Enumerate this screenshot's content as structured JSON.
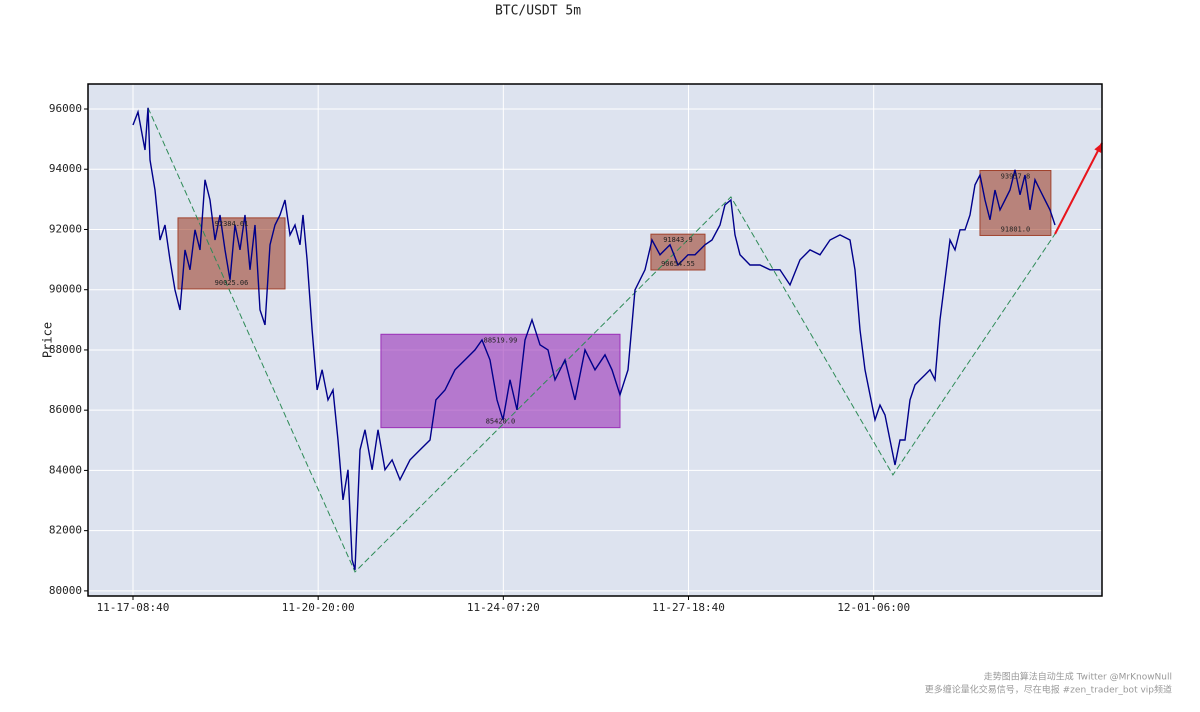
{
  "chart_data": {
    "type": "line",
    "title": "BTC/USDT 5m",
    "y_label": "Price",
    "x": [
      0,
      27,
      65,
      81,
      92,
      119,
      146,
      173,
      200,
      227,
      254,
      281,
      308,
      335,
      362,
      389,
      416,
      443,
      470,
      497,
      524,
      551,
      578,
      605,
      632,
      659,
      686,
      713,
      740,
      767,
      794,
      821,
      848,
      875,
      902,
      918,
      940,
      967,
      994,
      1021,
      1053,
      1080,
      1107,
      1134,
      1161,
      1183,
      1199,
      1226,
      1253,
      1291,
      1323,
      1361,
      1399,
      1442,
      1496,
      1550,
      1604,
      1636,
      1685,
      1739,
      1793,
      1847,
      1885,
      1928,
      1966,
      1998,
      2036,
      2074,
      2117,
      2155,
      2198,
      2241,
      2279,
      2333,
      2387,
      2441,
      2495,
      2549,
      2587,
      2630,
      2673,
      2711,
      2765,
      2803,
      2846,
      2900,
      2943,
      2997,
      3035,
      3089,
      3127,
      3170,
      3197,
      3229,
      3251,
      3278,
      3332,
      3386,
      3440,
      3494,
      3548,
      3602,
      3656,
      3710,
      3764,
      3818,
      3872,
      3899,
      3926,
      3953,
      3980,
      4007,
      4034,
      4061,
      4088,
      4115,
      4142,
      4169,
      4196,
      4223,
      4250,
      4277,
      4304,
      4331,
      4358,
      4385,
      4412,
      4439,
      4466,
      4493,
      4520,
      4547,
      4574,
      4601,
      4628,
      4655,
      4682,
      4709,
      4736,
      4763,
      4790,
      4817,
      4844,
      4871,
      4898,
      4925,
      4952,
      4979
    ],
    "values": [
      95470,
      95900,
      94640,
      96040,
      94310,
      93310,
      91650,
      92150,
      90990,
      89990,
      89330,
      91320,
      90660,
      91990,
      91320,
      93650,
      92980,
      91650,
      92480,
      91320,
      90330,
      92150,
      91320,
      92480,
      90660,
      92150,
      89330,
      88830,
      91490,
      92150,
      92480,
      92980,
      91820,
      92150,
      91490,
      92480,
      90990,
      88670,
      86670,
      87340,
      86340,
      86670,
      85010,
      83020,
      84020,
      81030,
      80700,
      84680,
      85350,
      84020,
      85350,
      84020,
      84350,
      83690,
      84350,
      84680,
      85010,
      86340,
      86670,
      87340,
      87670,
      88000,
      88330,
      87670,
      86340,
      85680,
      87010,
      86010,
      88330,
      89000,
      88170,
      88000,
      87010,
      87670,
      86340,
      88000,
      87340,
      87840,
      87340,
      86510,
      87340,
      89990,
      90660,
      91650,
      91160,
      91490,
      90820,
      91160,
      91160,
      91490,
      91650,
      92150,
      92820,
      92980,
      91820,
      91160,
      90820,
      90820,
      90660,
      90660,
      90160,
      90990,
      91320,
      91160,
      91650,
      91820,
      91650,
      90660,
      88670,
      87340,
      86510,
      85680,
      86170,
      85840,
      85010,
      84180,
      85010,
      85010,
      86340,
      86840,
      87010,
      87170,
      87340,
      87010,
      89000,
      90330,
      91650,
      91320,
      91990,
      91990,
      92480,
      93480,
      93810,
      92980,
      92320,
      93310,
      92650,
      92980,
      93310,
      93980,
      93150,
      93810,
      92650,
      93650,
      93310,
      92980,
      92650,
      92150
    ],
    "color": "#00008b",
    "zigzag": {
      "x": [
        81,
        1199,
        3229,
        4104,
        4979
      ],
      "values": [
        96040,
        80630,
        93080,
        83850,
        91850
      ],
      "color": "#2e8b57"
    },
    "projection": {
      "x": [
        4979,
        5233
      ],
      "values": [
        91850,
        94870
      ],
      "color": "#e8141c"
    },
    "boxes": [
      {
        "x": [
          243,
          821
        ],
        "values": [
          90025.06,
          92384.61
        ],
        "value_labels": [
          "90025.06",
          "92384.61"
        ],
        "color": "#a0422d"
      },
      {
        "x": [
          1339,
          2630
        ],
        "values": [
          85420.0,
          88519.99
        ],
        "value_labels": [
          "85420.0",
          "88519.99"
        ],
        "color": "#9b30b8"
      },
      {
        "x": [
          2797,
          3089
        ],
        "values": [
          90654.55,
          91843.9
        ],
        "value_labels": [
          "90654.55",
          "91843.9"
        ],
        "color": "#a0422d"
      },
      {
        "x": [
          4574,
          4957
        ],
        "values": [
          91801.0,
          93957.8
        ],
        "value_labels": [
          "91801.0",
          "93957.8"
        ],
        "color": "#a0422d"
      }
    ],
    "xlim": [
      -243,
      5233
    ],
    "ylim": [
      79830,
      96830
    ],
    "xticks": [
      {
        "value": 0,
        "label": "11-17-08:40"
      },
      {
        "value": 1000,
        "label": "11-20-20:00"
      },
      {
        "value": 2000,
        "label": "11-24-07:20"
      },
      {
        "value": 3000,
        "label": "11-27-18:40"
      },
      {
        "value": 4000,
        "label": "12-01-06:00"
      }
    ],
    "yticks": [
      80000,
      82000,
      84000,
      86000,
      88000,
      90000,
      92000,
      94000,
      96000
    ],
    "grid": true
  },
  "watermark": [
    "走势图由算法自动生成  Twitter @MrKnowNull",
    "更多缠论量化交易信号，尽在电报 #zen_trader_bot vip频道"
  ]
}
